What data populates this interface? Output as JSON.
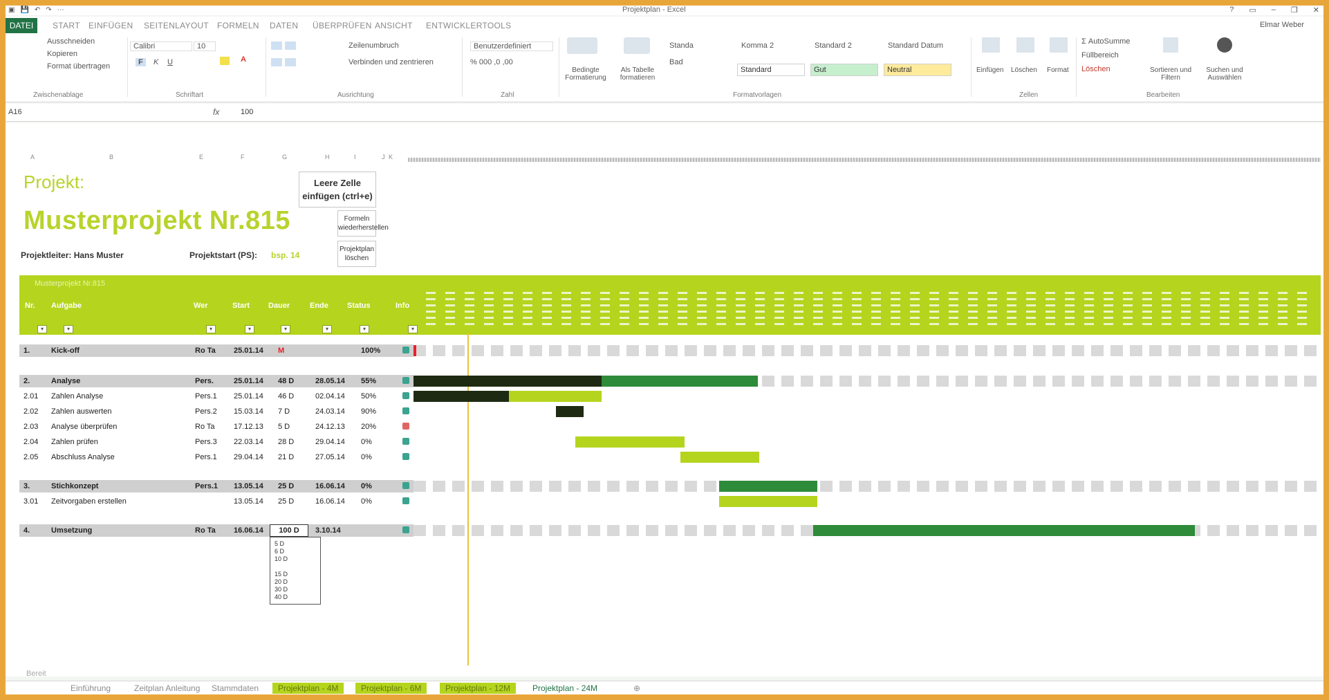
{
  "window": {
    "title": "Projektplan - Excel",
    "controls": [
      "?",
      "▭",
      "–",
      "❐",
      "✕"
    ]
  },
  "quick_access": [
    "▣",
    "💾",
    "↶",
    "↷",
    "⋯"
  ],
  "menu": {
    "file": "DATEI",
    "tabs": [
      "START",
      "EINFÜGEN",
      "SEITENLAYOUT",
      "FORMELN",
      "DATEN",
      "ÜBERPRÜFEN",
      "ANSICHT",
      "ENTWICKLERTOOLS"
    ],
    "user": "Elmar Weber"
  },
  "ribbon": {
    "clipboard": {
      "cut": "Ausschneiden",
      "copy": "Kopieren",
      "paste_format": "Format übertragen",
      "group": "Zwischenablage"
    },
    "font": {
      "name": "Calibri",
      "size": "10",
      "bold": "F",
      "italic": "K",
      "underline": "U",
      "group": "Schriftart"
    },
    "alignment": {
      "wrap": "Zeilenumbruch",
      "merge": "Verbinden und zentrieren",
      "group": "Ausrichtung"
    },
    "number": {
      "format": "Benutzerdefiniert",
      "group": "Zahl"
    },
    "styles": {
      "cond_format": "Bedingte Formatierung",
      "as_table": "Als Tabelle formatieren",
      "items": [
        {
          "label": "Komma 2",
          "box": "Standard",
          "color": "#ffffff"
        },
        {
          "label": "Standard 2",
          "box": "Gut",
          "color": "#c6efce"
        },
        {
          "label": "Standard Datum",
          "box": "Neutral",
          "color": "#ffeb9c"
        }
      ],
      "misc": [
        "Standa",
        "Bad"
      ],
      "group": "Formatvorlagen"
    },
    "cells": {
      "insert": "Einfügen",
      "delete": "Löschen",
      "format": "Format",
      "group": "Zellen"
    },
    "editing": {
      "autosum": "AutoSumme",
      "fill": "Füllbereich",
      "clear": "Löschen",
      "sort": "Sortieren und Filtern",
      "find": "Suchen und Auswählen",
      "group": "Bearbeiten"
    }
  },
  "formula_bar": {
    "name_box": "A16",
    "fx": "fx",
    "value": "100"
  },
  "column_headers": [
    "A",
    "B",
    "E",
    "F",
    "G",
    "H",
    "I",
    "J",
    "K"
  ],
  "project": {
    "label": "Projekt:",
    "title": "Musterprojekt Nr.815",
    "leader": "Projektleiter: Hans Muster",
    "start_label": "Projektstart (PS):",
    "start_value": "bsp. 14",
    "buttons": {
      "insert_row": "Leere Zelle einfügen (ctrl+e)",
      "restore": "Formeln wiederherstellen",
      "delete_plan": "Projektplan löschen"
    }
  },
  "table_headers": [
    "Nr.",
    "Aufgabe",
    "Wer",
    "Start",
    "Dauer",
    "Ende",
    "Status",
    "Info"
  ],
  "rows": [
    {
      "nr": "1.",
      "task": "Kick-off",
      "who": "Ro Ta",
      "start": "25.01.14",
      "dur": "M",
      "end": "",
      "pct": "100%",
      "group": true,
      "status": "#3ba38f"
    },
    {
      "nr": "2.",
      "task": "Analyse",
      "who": "Pers.",
      "start": "25.01.14",
      "dur": "48 D",
      "end": "28.05.14",
      "pct": "55%",
      "group": true,
      "status": "#3ba38f"
    },
    {
      "nr": "2.01",
      "task": "Zahlen Analyse",
      "who": "Pers.1",
      "start": "25.01.14",
      "dur": "46 D",
      "end": "02.04.14",
      "pct": "50%",
      "group": false,
      "status": "#3ba38f"
    },
    {
      "nr": "2.02",
      "task": "Zahlen auswerten",
      "who": "Pers.2",
      "start": "15.03.14",
      "dur": "7 D",
      "end": "24.03.14",
      "pct": "90%",
      "group": false,
      "status": "#3ba38f"
    },
    {
      "nr": "2.03",
      "task": "Analyse überprüfen",
      "who": "Ro Ta",
      "start": "17.12.13",
      "dur": "5 D",
      "end": "24.12.13",
      "pct": "20%",
      "group": false,
      "status": "#e06666"
    },
    {
      "nr": "2.04",
      "task": "Zahlen prüfen",
      "who": "Pers.3",
      "start": "22.03.14",
      "dur": "28 D",
      "end": "29.04.14",
      "pct": "0%",
      "group": false,
      "status": "#3ba38f"
    },
    {
      "nr": "2.05",
      "task": "Abschluss Analyse",
      "who": "Pers.1",
      "start": "29.04.14",
      "dur": "21 D",
      "end": "27.05.14",
      "pct": "0%",
      "group": false,
      "status": "#3ba38f"
    },
    {
      "nr": "3.",
      "task": "Stichkonzept",
      "who": "Pers.1",
      "start": "13.05.14",
      "dur": "25 D",
      "end": "16.06.14",
      "pct": "0%",
      "group": true,
      "status": "#3ba38f"
    },
    {
      "nr": "3.01",
      "task": "Zeitvorgaben erstellen",
      "who": "",
      "start": "13.05.14",
      "dur": "25 D",
      "end": "16.06.14",
      "pct": "0%",
      "group": false,
      "status": "#3ba38f"
    },
    {
      "nr": "4.",
      "task": "Umsetzung",
      "who": "Ro Ta",
      "start": "16.06.14",
      "dur": "100 D",
      "end": "3.10.14",
      "pct": "",
      "group": true,
      "status": "#3ba38f"
    }
  ],
  "dropdown_options": [
    "5 D",
    "6 D",
    "10 D",
    "",
    "15 D",
    "20 D",
    "30 D",
    "40 D"
  ],
  "sheet_tabs": [
    {
      "label": "Einführung",
      "style": "plain"
    },
    {
      "label": "Zeitplan Anleitung",
      "style": "plain"
    },
    {
      "label": "Stammdaten",
      "style": "plain"
    },
    {
      "label": "Projektplan - 4M",
      "style": "green"
    },
    {
      "label": "Projektplan - 6M",
      "style": "green"
    },
    {
      "label": "Projektplan - 12M",
      "style": "green"
    },
    {
      "label": "Projektplan - 24M",
      "style": "active"
    }
  ],
  "status_text": "Bereit"
}
